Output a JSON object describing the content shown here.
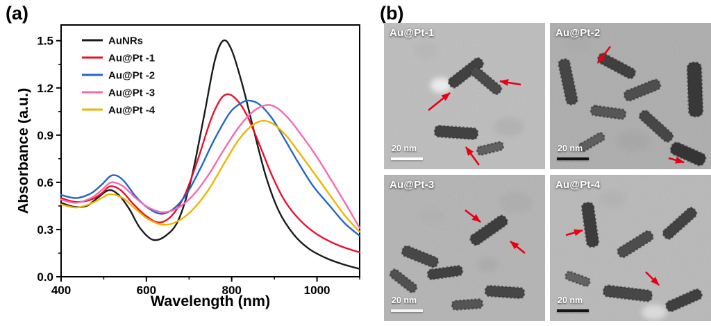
{
  "figure": {
    "panel_a_label": "(a)",
    "panel_b_label": "(b)"
  },
  "colors": {
    "arrow_red": "#e60012",
    "axis_black": "#000000"
  },
  "chart_data": {
    "type": "line",
    "title": "",
    "xlabel": "Wavelength (nm)",
    "ylabel": "Absorbance (a.u.)",
    "xlim": [
      400,
      1100
    ],
    "ylim": [
      0,
      1.6
    ],
    "xticks": [
      400,
      600,
      800,
      1000
    ],
    "xticks_minor": [
      500,
      700,
      900,
      1100
    ],
    "yticks": [
      0.0,
      0.3,
      0.6,
      0.9,
      1.2,
      1.5
    ],
    "yticks_minor": [
      0.15,
      0.45,
      0.75,
      1.05,
      1.35
    ],
    "grid": false,
    "legend_position": "top-left",
    "series": [
      {
        "name": "AuNRs",
        "color": "#1a1a1a",
        "points": [
          [
            400,
            0.47
          ],
          [
            430,
            0.445
          ],
          [
            460,
            0.45
          ],
          [
            485,
            0.5
          ],
          [
            512,
            0.55
          ],
          [
            535,
            0.52
          ],
          [
            560,
            0.43
          ],
          [
            585,
            0.31
          ],
          [
            615,
            0.235
          ],
          [
            645,
            0.26
          ],
          [
            675,
            0.36
          ],
          [
            705,
            0.62
          ],
          [
            735,
            1.02
          ],
          [
            760,
            1.37
          ],
          [
            780,
            1.5
          ],
          [
            800,
            1.44
          ],
          [
            825,
            1.22
          ],
          [
            850,
            0.95
          ],
          [
            880,
            0.64
          ],
          [
            910,
            0.42
          ],
          [
            945,
            0.27
          ],
          [
            980,
            0.18
          ],
          [
            1020,
            0.12
          ],
          [
            1060,
            0.08
          ],
          [
            1100,
            0.05
          ]
        ]
      },
      {
        "name": "Au@Pt -1",
        "color": "#e8112d",
        "points": [
          [
            400,
            0.5
          ],
          [
            435,
            0.475
          ],
          [
            470,
            0.49
          ],
          [
            495,
            0.53
          ],
          [
            515,
            0.575
          ],
          [
            540,
            0.55
          ],
          [
            570,
            0.46
          ],
          [
            600,
            0.385
          ],
          [
            630,
            0.345
          ],
          [
            660,
            0.39
          ],
          [
            690,
            0.52
          ],
          [
            720,
            0.74
          ],
          [
            750,
            0.99
          ],
          [
            772,
            1.12
          ],
          [
            790,
            1.16
          ],
          [
            810,
            1.13
          ],
          [
            835,
            1.03
          ],
          [
            865,
            0.84
          ],
          [
            895,
            0.64
          ],
          [
            925,
            0.48
          ],
          [
            960,
            0.36
          ],
          [
            1000,
            0.27
          ],
          [
            1050,
            0.2
          ],
          [
            1100,
            0.155
          ]
        ]
      },
      {
        "name": "Au@Pt -2",
        "color": "#2066cc",
        "points": [
          [
            400,
            0.52
          ],
          [
            435,
            0.5
          ],
          [
            470,
            0.53
          ],
          [
            495,
            0.585
          ],
          [
            520,
            0.645
          ],
          [
            545,
            0.615
          ],
          [
            575,
            0.51
          ],
          [
            605,
            0.435
          ],
          [
            635,
            0.4
          ],
          [
            665,
            0.435
          ],
          [
            695,
            0.53
          ],
          [
            725,
            0.68
          ],
          [
            760,
            0.875
          ],
          [
            795,
            1.04
          ],
          [
            820,
            1.1
          ],
          [
            840,
            1.12
          ],
          [
            865,
            1.095
          ],
          [
            895,
            1.005
          ],
          [
            925,
            0.87
          ],
          [
            955,
            0.73
          ],
          [
            990,
            0.58
          ],
          [
            1030,
            0.45
          ],
          [
            1065,
            0.34
          ],
          [
            1100,
            0.26
          ]
        ]
      },
      {
        "name": "Au@Pt -3",
        "color": "#f768b4",
        "points": [
          [
            400,
            0.49
          ],
          [
            435,
            0.47
          ],
          [
            470,
            0.5
          ],
          [
            495,
            0.55
          ],
          [
            518,
            0.6
          ],
          [
            545,
            0.575
          ],
          [
            575,
            0.5
          ],
          [
            605,
            0.44
          ],
          [
            640,
            0.41
          ],
          [
            675,
            0.44
          ],
          [
            710,
            0.52
          ],
          [
            745,
            0.645
          ],
          [
            780,
            0.8
          ],
          [
            815,
            0.945
          ],
          [
            850,
            1.05
          ],
          [
            880,
            1.09
          ],
          [
            905,
            1.075
          ],
          [
            935,
            1.0
          ],
          [
            965,
            0.895
          ],
          [
            1000,
            0.76
          ],
          [
            1040,
            0.585
          ],
          [
            1070,
            0.45
          ],
          [
            1100,
            0.31
          ]
        ]
      },
      {
        "name": "Au@Pt -4",
        "color": "#f0b400",
        "points": [
          [
            400,
            0.46
          ],
          [
            435,
            0.44
          ],
          [
            470,
            0.465
          ],
          [
            495,
            0.5
          ],
          [
            515,
            0.525
          ],
          [
            545,
            0.5
          ],
          [
            575,
            0.43
          ],
          [
            605,
            0.365
          ],
          [
            640,
            0.33
          ],
          [
            675,
            0.355
          ],
          [
            710,
            0.43
          ],
          [
            745,
            0.55
          ],
          [
            780,
            0.71
          ],
          [
            815,
            0.865
          ],
          [
            845,
            0.955
          ],
          [
            870,
            0.99
          ],
          [
            895,
            0.975
          ],
          [
            925,
            0.905
          ],
          [
            955,
            0.8
          ],
          [
            990,
            0.67
          ],
          [
            1030,
            0.52
          ],
          [
            1065,
            0.39
          ],
          [
            1100,
            0.285
          ]
        ]
      }
    ]
  },
  "tem_panels": [
    {
      "label": "Au@Pt-1",
      "scale_label": "20 nm",
      "scalebar_color": "#ffffff",
      "bg": "#bdbdbd"
    },
    {
      "label": "Au@Pt-2",
      "scale_label": "20 nm",
      "scalebar_color": "#141414",
      "bg": "#aaaaaa"
    },
    {
      "label": "Au@Pt-3",
      "scale_label": "20 nm",
      "scalebar_color": "#f5f5f5",
      "bg": "#b2b2b2"
    },
    {
      "label": "Au@Pt-4",
      "scale_label": "20 nm",
      "scalebar_color": "#141414",
      "bg": "#b8b8b8"
    }
  ]
}
